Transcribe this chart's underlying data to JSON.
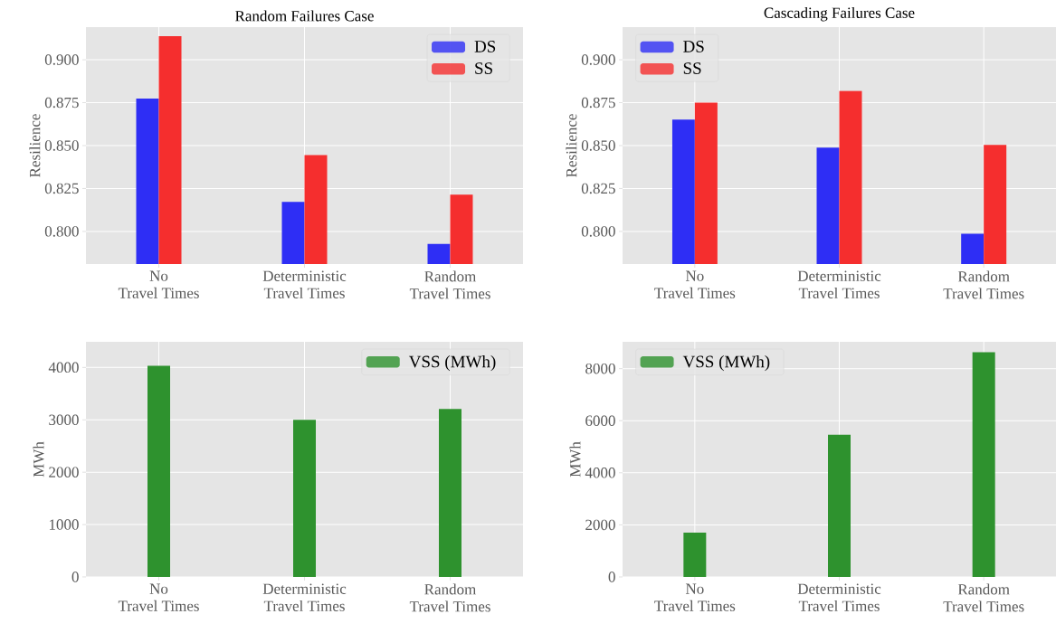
{
  "chart_data": [
    {
      "type": "bar",
      "title": "Random Failures Case",
      "ylabel": "Resilience",
      "categories": [
        "No\nTravel Times",
        "Deterministic\nTravel Times",
        "Random\nTravel Times"
      ],
      "series": [
        {
          "name": "DS",
          "color": "#2e2ef5",
          "values": [
            0.8774,
            0.8172,
            0.7927
          ]
        },
        {
          "name": "SS",
          "color": "#f52e2e",
          "values": [
            0.9137,
            0.8445,
            0.8214
          ]
        }
      ],
      "ylim": [
        0.781,
        0.919
      ],
      "yticks": [
        {
          "value": 0.8,
          "label": "0.800"
        },
        {
          "value": 0.825,
          "label": "0.825"
        },
        {
          "value": 0.85,
          "label": "0.850"
        },
        {
          "value": 0.875,
          "label": "0.875"
        },
        {
          "value": 0.9,
          "label": "0.900"
        }
      ],
      "grid": true,
      "legend": "top right"
    },
    {
      "type": "bar",
      "title": "Cascading Failures Case",
      "ylabel": "Resilience",
      "categories": [
        "No\nTravel Times",
        "Deterministic\nTravel Times",
        "Random\nTravel Times"
      ],
      "series": [
        {
          "name": "DS",
          "color": "#2e2ef5",
          "values": [
            0.8652,
            0.8488,
            0.7986
          ]
        },
        {
          "name": "SS",
          "color": "#f52e2e",
          "values": [
            0.875,
            0.8818,
            0.8504
          ]
        }
      ],
      "ylim": [
        0.781,
        0.919
      ],
      "yticks": [
        {
          "value": 0.8,
          "label": "0.800"
        },
        {
          "value": 0.825,
          "label": "0.825"
        },
        {
          "value": 0.85,
          "label": "0.850"
        },
        {
          "value": 0.875,
          "label": "0.875"
        },
        {
          "value": 0.9,
          "label": "0.900"
        }
      ],
      "grid": true,
      "legend": "top left"
    },
    {
      "type": "bar",
      "ylabel": "MWh",
      "categories": [
        "No\nTravel Times",
        "Deterministic\nTravel Times",
        "Random\nTravel Times"
      ],
      "series": [
        {
          "name": "VSS (MWh)",
          "color": "#2e922e",
          "values": [
            4034,
            3000,
            3207
          ]
        }
      ],
      "ylim": [
        0,
        4490
      ],
      "yticks": [
        0,
        1000,
        2000,
        3000,
        4000
      ],
      "grid": true,
      "legend": "top right"
    },
    {
      "type": "bar",
      "ylabel": "MWh",
      "categories": [
        "No\nTravel Times",
        "Deterministic\nTravel Times",
        "Random\nTravel Times"
      ],
      "series": [
        {
          "name": "VSS (MWh)",
          "color": "#2e922e",
          "values": [
            1700,
            5458,
            8634
          ]
        }
      ],
      "ylim": [
        0,
        9030
      ],
      "yticks": [
        0,
        2000,
        4000,
        6000,
        8000
      ],
      "grid": true,
      "legend": "top left"
    }
  ]
}
